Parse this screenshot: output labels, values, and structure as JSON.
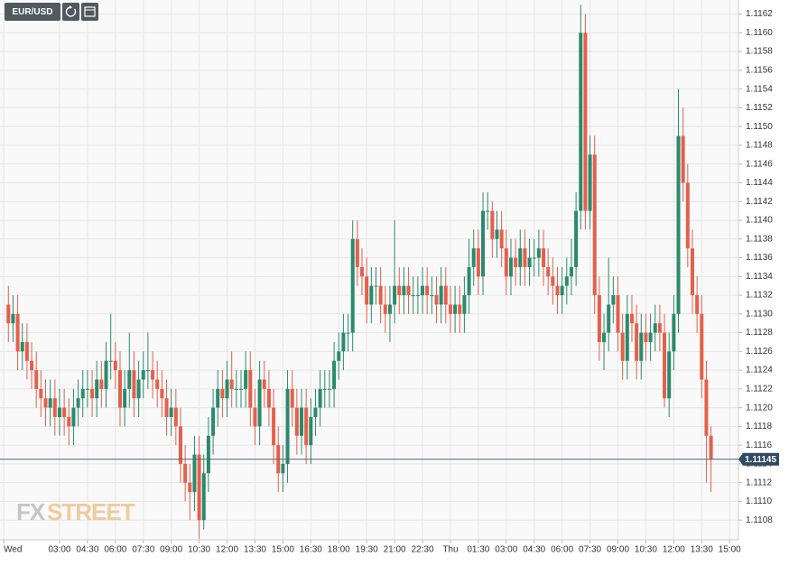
{
  "chart_data": {
    "type": "candlestick",
    "symbol": "EUR/USD",
    "watermark": {
      "left": "FX",
      "right": "STREET"
    },
    "up_color": "#2b8a6c",
    "down_color": "#e4604b",
    "grid": true,
    "last_price": 1.11145,
    "xlim": [
      -0.8,
      157.9
    ],
    "ylim": [
      1.11059,
      1.11635
    ],
    "xticks": [
      {
        "value": 0,
        "label": "Wed"
      },
      {
        "value": 12,
        "label": "03:00"
      },
      {
        "value": 18,
        "label": "04:30"
      },
      {
        "value": 24,
        "label": "06:00"
      },
      {
        "value": 30,
        "label": "07:30"
      },
      {
        "value": 36,
        "label": "09:00"
      },
      {
        "value": 42,
        "label": "10:30"
      },
      {
        "value": 48,
        "label": "12:00"
      },
      {
        "value": 54,
        "label": "13:30"
      },
      {
        "value": 60,
        "label": "15:00"
      },
      {
        "value": 66,
        "label": "16:30"
      },
      {
        "value": 72,
        "label": "18:00"
      },
      {
        "value": 78,
        "label": "19:30"
      },
      {
        "value": 84,
        "label": "21:00"
      },
      {
        "value": 90,
        "label": "22:30"
      },
      {
        "value": 96,
        "label": "Thu"
      },
      {
        "value": 102,
        "label": "01:30"
      },
      {
        "value": 108,
        "label": "03:00"
      },
      {
        "value": 114,
        "label": "04:30"
      },
      {
        "value": 120,
        "label": "06:00"
      },
      {
        "value": 126,
        "label": "07:30"
      },
      {
        "value": 132,
        "label": "09:00"
      },
      {
        "value": 138,
        "label": "10:30"
      },
      {
        "value": 144,
        "label": "12:00"
      },
      {
        "value": 150,
        "label": "13:30"
      },
      {
        "value": 156,
        "label": "15:00"
      }
    ],
    "yticks": [
      1.1108,
      {
        "value": 1.111,
        "label": "1.1110"
      },
      1.1112,
      1.1114,
      1.1116,
      1.1118,
      {
        "value": 1.112,
        "label": "1.1120"
      },
      1.1122,
      1.1124,
      1.1126,
      1.1128,
      {
        "value": 1.113,
        "label": "1.1130"
      },
      1.1132,
      1.1134,
      1.1136,
      1.1138,
      {
        "value": 1.114,
        "label": "1.1140"
      },
      1.1142,
      1.1144,
      1.1146,
      1.1148,
      {
        "value": 1.115,
        "label": "1.1150"
      },
      1.1152,
      1.1154,
      1.1156,
      1.1158,
      {
        "value": 1.116,
        "label": "1.1160"
      },
      1.1162
    ],
    "x": [
      1,
      2,
      3,
      4,
      5,
      6,
      7,
      8,
      9,
      10,
      11,
      12,
      13,
      14,
      15,
      16,
      17,
      18,
      19,
      20,
      21,
      22,
      23,
      24,
      25,
      26,
      27,
      28,
      29,
      30,
      31,
      32,
      33,
      34,
      35,
      36,
      37,
      38,
      39,
      40,
      41,
      42,
      43,
      44,
      45,
      46,
      47,
      48,
      49,
      50,
      51,
      52,
      53,
      54,
      55,
      56,
      57,
      58,
      59,
      60,
      61,
      62,
      63,
      64,
      65,
      66,
      67,
      68,
      69,
      70,
      71,
      72,
      73,
      74,
      75,
      76,
      77,
      78,
      79,
      80,
      81,
      82,
      83,
      84,
      85,
      86,
      87,
      88,
      89,
      90,
      91,
      92,
      93,
      94,
      95,
      96,
      97,
      98,
      99,
      100,
      101,
      102,
      103,
      104,
      105,
      106,
      107,
      108,
      109,
      110,
      111,
      112,
      113,
      114,
      115,
      116,
      117,
      118,
      119,
      120,
      121,
      122,
      123,
      124,
      125,
      126,
      127,
      128,
      129,
      130,
      131,
      132,
      133,
      134,
      135,
      136,
      137,
      138,
      139,
      140,
      141,
      142,
      143,
      144,
      145,
      146,
      147,
      148,
      149,
      150,
      151,
      152
    ],
    "open": [
      1.1131,
      1.1129,
      1.113,
      1.1126,
      1.1127,
      1.1125,
      1.1124,
      1.1122,
      1.1121,
      1.112,
      1.1121,
      1.1119,
      1.112,
      1.1119,
      1.1118,
      1.112,
      1.1121,
      1.1122,
      1.1122,
      1.1121,
      1.1123,
      1.1122,
      1.1125,
      1.1125,
      1.1124,
      1.112,
      1.1122,
      1.1124,
      1.1121,
      1.1123,
      1.1124,
      1.1124,
      1.1123,
      1.1122,
      1.1121,
      1.1119,
      1.112,
      1.1118,
      1.1114,
      1.1112,
      1.1111,
      1.1115,
      1.1108,
      1.1113,
      1.1117,
      1.112,
      1.1122,
      1.1121,
      1.1123,
      1.1122,
      1.1122,
      1.1122,
      1.1124,
      1.112,
      1.1118,
      1.1123,
      1.1122,
      1.112,
      1.1116,
      1.1113,
      1.1114,
      1.1122,
      1.112,
      1.1117,
      1.112,
      1.1116,
      1.1119,
      1.112,
      1.1122,
      1.1122,
      1.1122,
      1.1125,
      1.1126,
      1.1128,
      1.1128,
      1.1138,
      1.1135,
      1.1134,
      1.1131,
      1.1133,
      1.1133,
      1.1131,
      1.113,
      1.1131,
      1.1133,
      1.1132,
      1.1133,
      1.1132,
      1.1132,
      1.1132,
      1.1133,
      1.1132,
      1.1132,
      1.1131,
      1.1133,
      1.1131,
      1.113,
      1.1131,
      1.113,
      1.1132,
      1.1135,
      1.1137,
      1.1134,
      1.1141,
      1.1141,
      1.1138,
      1.1139,
      1.1137,
      1.1134,
      1.1136,
      1.1135,
      1.1137,
      1.1135,
      1.1136,
      1.1136,
      1.1137,
      1.1135,
      1.1134,
      1.1133,
      1.1132,
      1.1133,
      1.1134,
      1.1135,
      1.1141,
      1.116,
      1.1141,
      1.1147,
      1.1132,
      1.1127,
      1.1128,
      1.1131,
      1.1132,
      1.1128,
      1.1125,
      1.113,
      1.1129,
      1.1125,
      1.1128,
      1.1127,
      1.1128,
      1.1129,
      1.1128,
      1.1121,
      1.1126,
      1.113,
      1.1149,
      1.1144,
      1.1137,
      1.1132,
      1.113,
      1.1123,
      1.1117
    ],
    "high": [
      1.1133,
      1.1132,
      1.1132,
      1.1129,
      1.1129,
      1.1127,
      1.1126,
      1.1124,
      1.1123,
      1.1123,
      1.1123,
      1.1122,
      1.1122,
      1.1121,
      1.1122,
      1.1123,
      1.1124,
      1.1124,
      1.1124,
      1.1125,
      1.1125,
      1.1127,
      1.113,
      1.1127,
      1.1126,
      1.1124,
      1.1128,
      1.1126,
      1.1125,
      1.1126,
      1.1128,
      1.1126,
      1.1125,
      1.1124,
      1.1123,
      1.1122,
      1.1122,
      1.112,
      1.1116,
      1.1114,
      1.1117,
      1.1117,
      1.1115,
      1.1119,
      1.1122,
      1.1124,
      1.1124,
      1.1125,
      1.1126,
      1.1124,
      1.1124,
      1.1126,
      1.1126,
      1.1122,
      1.1125,
      1.1125,
      1.1124,
      1.1122,
      1.1118,
      1.1116,
      1.1124,
      1.1124,
      1.1122,
      1.1122,
      1.1122,
      1.1121,
      1.1122,
      1.1124,
      1.1124,
      1.1124,
      1.1127,
      1.1128,
      1.113,
      1.113,
      1.114,
      1.114,
      1.1137,
      1.1136,
      1.1135,
      1.1135,
      1.1135,
      1.1133,
      1.1133,
      1.114,
      1.1135,
      1.1135,
      1.1135,
      1.1134,
      1.1134,
      1.1135,
      1.1135,
      1.1134,
      1.1134,
      1.1135,
      1.1135,
      1.1133,
      1.1133,
      1.1133,
      1.1134,
      1.1138,
      1.1139,
      1.1139,
      1.1143,
      1.1143,
      1.1142,
      1.1141,
      1.1141,
      1.1139,
      1.1138,
      1.1138,
      1.1139,
      1.1139,
      1.1138,
      1.1138,
      1.1139,
      1.1139,
      1.1137,
      1.1136,
      1.1135,
      1.1135,
      1.1136,
      1.1138,
      1.1143,
      1.1163,
      1.1162,
      1.1149,
      1.1149,
      1.1134,
      1.113,
      1.1136,
      1.1134,
      1.1134,
      1.113,
      1.1132,
      1.1132,
      1.1131,
      1.113,
      1.113,
      1.113,
      1.1131,
      1.1131,
      1.113,
      1.1128,
      1.1132,
      1.1154,
      1.1152,
      1.1146,
      1.1139,
      1.1134,
      1.1132,
      1.1125,
      1.1118
    ],
    "low": [
      1.1127,
      1.1127,
      1.1124,
      1.1124,
      1.1123,
      1.1122,
      1.112,
      1.1119,
      1.1118,
      1.1118,
      1.1117,
      1.1117,
      1.1117,
      1.1116,
      1.1116,
      1.1118,
      1.1119,
      1.112,
      1.1119,
      1.1119,
      1.112,
      1.112,
      1.1123,
      1.1122,
      1.1118,
      1.1118,
      1.112,
      1.1119,
      1.1119,
      1.1121,
      1.1122,
      1.1121,
      1.112,
      1.1119,
      1.1117,
      1.1117,
      1.1116,
      1.1112,
      1.111,
      1.1108,
      1.1109,
      1.1106,
      1.1107,
      1.1111,
      1.1115,
      1.1118,
      1.1119,
      1.1119,
      1.112,
      1.112,
      1.112,
      1.112,
      1.1118,
      1.1116,
      1.1116,
      1.112,
      1.1118,
      1.1114,
      1.1111,
      1.1111,
      1.1112,
      1.1118,
      1.1115,
      1.1115,
      1.1114,
      1.1114,
      1.1117,
      1.1118,
      1.112,
      1.112,
      1.112,
      1.1123,
      1.1124,
      1.1126,
      1.1126,
      1.1133,
      1.1132,
      1.1129,
      1.1129,
      1.1131,
      1.1129,
      1.1128,
      1.1127,
      1.1129,
      1.113,
      1.113,
      1.113,
      1.113,
      1.113,
      1.113,
      1.113,
      1.113,
      1.1129,
      1.1129,
      1.1129,
      1.1128,
      1.1128,
      1.1128,
      1.1128,
      1.113,
      1.1133,
      1.1132,
      1.1132,
      1.1139,
      1.1136,
      1.1136,
      1.1135,
      1.1132,
      1.1132,
      1.1133,
      1.1133,
      1.1133,
      1.1133,
      1.1134,
      1.1134,
      1.1133,
      1.1132,
      1.1131,
      1.113,
      1.113,
      1.1131,
      1.1132,
      1.1133,
      1.1139,
      1.1139,
      1.1139,
      1.113,
      1.1125,
      1.1124,
      1.1126,
      1.1129,
      1.1126,
      1.1123,
      1.1123,
      1.1127,
      1.1123,
      1.1123,
      1.1125,
      1.1125,
      1.1126,
      1.1126,
      1.112,
      1.1119,
      1.1124,
      1.1128,
      1.1142,
      1.1135,
      1.113,
      1.1128,
      1.1121,
      1.1112,
      1.1111
    ],
    "close": [
      1.1129,
      1.113,
      1.1126,
      1.1127,
      1.1125,
      1.1124,
      1.1122,
      1.1121,
      1.112,
      1.1121,
      1.1119,
      1.112,
      1.1119,
      1.1118,
      1.112,
      1.1121,
      1.1122,
      1.1122,
      1.1121,
      1.1123,
      1.1122,
      1.1125,
      1.1125,
      1.1124,
      1.112,
      1.1122,
      1.1124,
      1.1121,
      1.1123,
      1.1124,
      1.1124,
      1.1123,
      1.1122,
      1.1121,
      1.1119,
      1.112,
      1.1118,
      1.1114,
      1.1112,
      1.1111,
      1.1115,
      1.1108,
      1.1113,
      1.1117,
      1.112,
      1.1122,
      1.1121,
      1.1123,
      1.1122,
      1.1122,
      1.1122,
      1.1124,
      1.112,
      1.1118,
      1.1123,
      1.1122,
      1.112,
      1.1116,
      1.1113,
      1.1114,
      1.1122,
      1.112,
      1.1117,
      1.112,
      1.1116,
      1.1119,
      1.112,
      1.1122,
      1.1122,
      1.1122,
      1.1125,
      1.1126,
      1.1128,
      1.1128,
      1.1138,
      1.1135,
      1.1134,
      1.1131,
      1.1133,
      1.1133,
      1.1131,
      1.113,
      1.1131,
      1.1133,
      1.1132,
      1.1133,
      1.1132,
      1.1132,
      1.1132,
      1.1133,
      1.1132,
      1.1132,
      1.1131,
      1.1133,
      1.1131,
      1.113,
      1.1131,
      1.113,
      1.1132,
      1.1135,
      1.1137,
      1.1134,
      1.1141,
      1.1141,
      1.1138,
      1.1139,
      1.1137,
      1.1134,
      1.1136,
      1.1135,
      1.1137,
      1.1135,
      1.1136,
      1.1136,
      1.1137,
      1.1135,
      1.1134,
      1.1133,
      1.1132,
      1.1133,
      1.1134,
      1.1135,
      1.1141,
      1.116,
      1.1141,
      1.1147,
      1.1132,
      1.1127,
      1.1128,
      1.1131,
      1.1132,
      1.1128,
      1.1125,
      1.113,
      1.1129,
      1.1125,
      1.1128,
      1.1127,
      1.1128,
      1.1129,
      1.1128,
      1.1121,
      1.1126,
      1.113,
      1.1149,
      1.1144,
      1.1137,
      1.1132,
      1.113,
      1.1123,
      1.1117,
      1.11145
    ]
  }
}
